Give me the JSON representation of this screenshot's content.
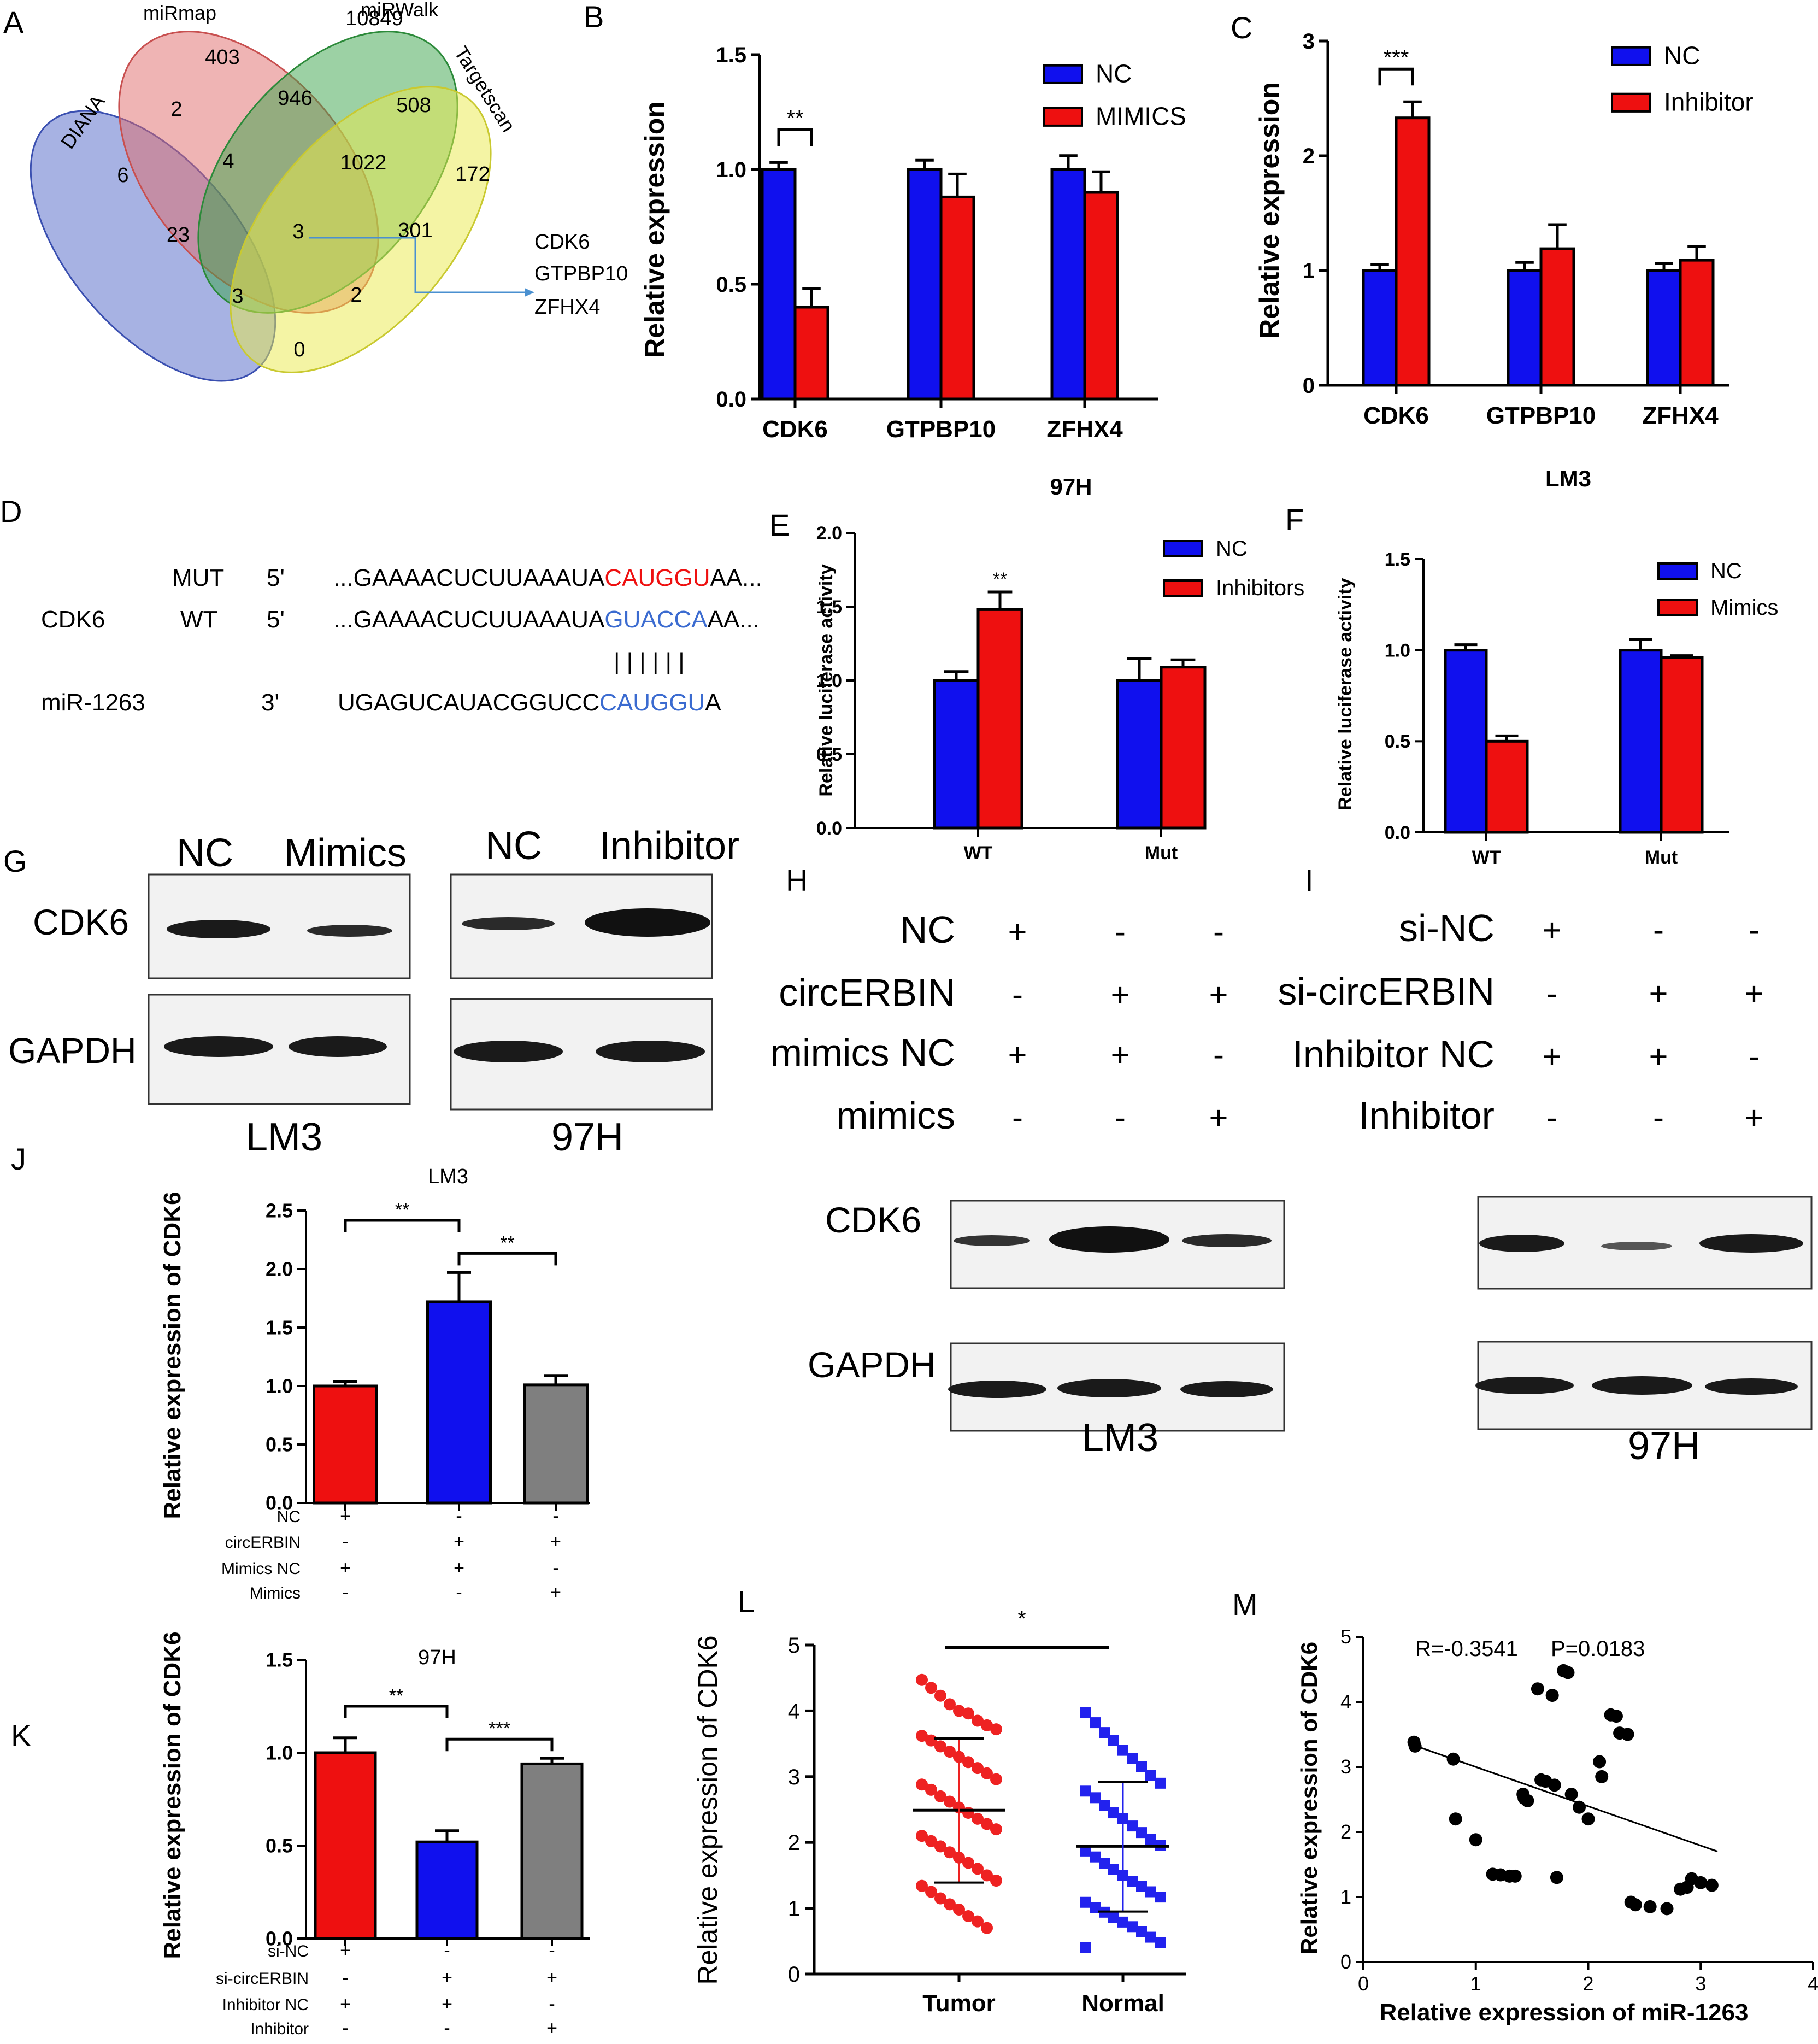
{
  "colors": {
    "nc": "#1010ee",
    "treat": "#ee1010",
    "gray": "#7f7f7f",
    "tumor": "#ee2222",
    "normal": "#2222ee",
    "venn_diana": "#4f66c8",
    "venn_mirmap": "#e06a6a",
    "venn_mirwalk": "#3aa34a",
    "venn_targetscan": "#e9e94a",
    "venn_extra": "#f0a040",
    "arrow": "#4a90d0"
  },
  "panels": {
    "A": "A",
    "B": "B",
    "C": "C",
    "D": "D",
    "E": "E",
    "F": "F",
    "G": "G",
    "H": "H",
    "I": "I",
    "J": "J",
    "K": "K",
    "L": "L",
    "M": "M"
  },
  "venn": {
    "sets": [
      "DIANA",
      "miRmap",
      "miRWalk",
      "Targetscan"
    ],
    "counts": [
      "403",
      "10849",
      "6",
      "2",
      "946",
      "508",
      "172",
      "4",
      "1022",
      "23",
      "3",
      "301",
      "3",
      "2",
      "0"
    ],
    "targets": [
      "CDK6",
      "GTPBP10",
      "ZFHX4"
    ]
  },
  "sequence": {
    "rows": [
      {
        "label": "",
        "type": "MUT",
        "end": "5'",
        "seq_pre": "...GAAAACUCUUAAAUA",
        "seq_mark": "CAUGGU",
        "seq_post": "AA..."
      },
      {
        "label": "CDK6",
        "type": "WT",
        "end": "5'",
        "seq_pre": "...GAAAACUCUUAAAUA",
        "seq_mark": "GUACCA",
        "seq_post": "AA..."
      },
      {
        "label": "miR-1263",
        "type": "",
        "end": "3'",
        "seq_pre": "UGAGUCAUACGGUCC",
        "seq_mark": "CAUGGU",
        "seq_post": "A"
      }
    ],
    "pairing": "| | | | | |"
  },
  "blots_G": {
    "LM3": {
      "lanes": [
        "NC",
        "Mimics"
      ],
      "cell": "LM3"
    },
    "97H": {
      "lanes": [
        "NC",
        "Inhibitor"
      ],
      "cell": "97H"
    },
    "proteins": [
      "CDK6",
      "GAPDH"
    ]
  },
  "blot_H": {
    "rows": [
      {
        "label": "NC",
        "signs": [
          "+",
          "-",
          "-"
        ]
      },
      {
        "label": "circERBIN",
        "signs": [
          "-",
          "+",
          "+"
        ]
      },
      {
        "label": "mimics NC",
        "signs": [
          "+",
          "+",
          "-"
        ]
      },
      {
        "label": "mimics",
        "signs": [
          "-",
          "-",
          "+"
        ]
      }
    ],
    "proteins": [
      "CDK6",
      "GAPDH"
    ],
    "cell": "LM3"
  },
  "blot_I": {
    "rows": [
      {
        "label": "si-NC",
        "signs": [
          "+",
          "-",
          "-"
        ]
      },
      {
        "label": "si-circERBIN",
        "signs": [
          "-",
          "+",
          "+"
        ]
      },
      {
        "label": "Inhibitor NC",
        "signs": [
          "+",
          "+",
          "-"
        ]
      },
      {
        "label": "Inhibitor",
        "signs": [
          "-",
          "-",
          "+"
        ]
      }
    ],
    "cell": "97H"
  },
  "chart_data": [
    {
      "id": "B",
      "type": "bar",
      "categories": [
        "CDK6",
        "GTPBP10",
        "ZFHX4"
      ],
      "series": [
        {
          "name": "NC",
          "values": [
            1.0,
            1.0,
            1.0
          ],
          "errors": [
            0.03,
            0.04,
            0.06
          ]
        },
        {
          "name": "MIMICS",
          "values": [
            0.4,
            0.88,
            0.9
          ],
          "errors": [
            0.08,
            0.1,
            0.09
          ]
        }
      ],
      "title": "97H",
      "ylabel": "Relative expression",
      "ylim": [
        0,
        1.5
      ],
      "yticks": [
        "0.0",
        "0.5",
        "1.0",
        "1.5"
      ],
      "significance": [
        {
          "label": "**",
          "category": "CDK6"
        }
      ]
    },
    {
      "id": "C",
      "type": "bar",
      "categories": [
        "CDK6",
        "GTPBP10",
        "ZFHX4"
      ],
      "series": [
        {
          "name": "NC",
          "values": [
            1.0,
            1.0,
            1.0
          ],
          "errors": [
            0.05,
            0.07,
            0.06
          ]
        },
        {
          "name": "Inhibitor",
          "values": [
            2.33,
            1.19,
            1.09
          ],
          "errors": [
            0.14,
            0.21,
            0.12
          ]
        }
      ],
      "title": "LM3",
      "ylabel": "Relative expression",
      "ylim": [
        0,
        3
      ],
      "yticks": [
        "0",
        "1",
        "2",
        "3"
      ],
      "significance": [
        {
          "label": "***",
          "category": "CDK6"
        }
      ]
    },
    {
      "id": "E",
      "type": "bar",
      "categories": [
        "WT",
        "Mut"
      ],
      "series": [
        {
          "name": "NC",
          "values": [
            1.0,
            1.0
          ],
          "errors": [
            0.06,
            0.15
          ]
        },
        {
          "name": "Inhibitors",
          "values": [
            1.48,
            1.09
          ],
          "errors": [
            0.12,
            0.05
          ]
        }
      ],
      "ylabel": "Relative luciferase activity",
      "ylim": [
        0,
        2.0
      ],
      "yticks": [
        "0.0",
        "0.5",
        "1.0",
        "1.5",
        "2.0"
      ],
      "significance": [
        {
          "label": "**",
          "category": "WT"
        }
      ]
    },
    {
      "id": "F",
      "type": "bar",
      "categories": [
        "WT",
        "Mut"
      ],
      "series": [
        {
          "name": "NC",
          "values": [
            1.0,
            1.0
          ],
          "errors": [
            0.03,
            0.06
          ]
        },
        {
          "name": "Mimics",
          "values": [
            0.5,
            0.96
          ],
          "errors": [
            0.03,
            0.01
          ]
        }
      ],
      "ylabel": "Relative luciferase activity",
      "ylim": [
        0,
        1.5
      ],
      "yticks": [
        "0.0",
        "0.5",
        "1.0",
        "1.5"
      ]
    },
    {
      "id": "J",
      "type": "bar",
      "title": "LM3",
      "categories": [
        "1",
        "2",
        "3"
      ],
      "values": [
        1.0,
        1.72,
        1.01
      ],
      "errors": [
        0.04,
        0.25,
        0.08
      ],
      "ylabel": "Relative expression of CDK6",
      "ylim": [
        0,
        2.5
      ],
      "yticks": [
        "0.0",
        "0.5",
        "1.0",
        "1.5",
        "2.0",
        "2.5"
      ],
      "conditions": [
        {
          "label": "NC",
          "signs": [
            "+",
            "-",
            "-"
          ]
        },
        {
          "label": "circERBIN",
          "signs": [
            "-",
            "+",
            "+"
          ]
        },
        {
          "label": "Mimics NC",
          "signs": [
            "+",
            "+",
            "-"
          ]
        },
        {
          "label": "Mimics",
          "signs": [
            "-",
            "-",
            "+"
          ]
        }
      ],
      "significance": [
        {
          "label": "**",
          "from": 0,
          "to": 1
        },
        {
          "label": "**",
          "from": 1,
          "to": 2
        }
      ]
    },
    {
      "id": "K",
      "type": "bar",
      "title": "97H",
      "categories": [
        "1",
        "2",
        "3"
      ],
      "values": [
        1.0,
        0.52,
        0.94
      ],
      "errors": [
        0.08,
        0.06,
        0.03
      ],
      "ylabel": "Relative expression of CDK6",
      "ylim": [
        0,
        1.5
      ],
      "yticks": [
        "0.0",
        "0.5",
        "1.0",
        "1.5"
      ],
      "conditions": [
        {
          "label": "si-NC",
          "signs": [
            "+",
            "-",
            "-"
          ]
        },
        {
          "label": "si-circERBIN",
          "signs": [
            "-",
            "+",
            "+"
          ]
        },
        {
          "label": "Inhibitor NC",
          "signs": [
            "+",
            "+",
            "-"
          ]
        },
        {
          "label": "Inhibitor",
          "signs": [
            "-",
            "-",
            "+"
          ]
        }
      ],
      "significance": [
        {
          "label": "**",
          "from": 0,
          "to": 1
        },
        {
          "label": "***",
          "from": 1,
          "to": 2
        }
      ]
    },
    {
      "id": "L",
      "type": "scatter",
      "categories": [
        "Tumor",
        "Normal"
      ],
      "ylabel": "Relative expression of CDK6",
      "ylim": [
        0,
        5
      ],
      "yticks": [
        "0",
        "1",
        "2",
        "3",
        "4",
        "5"
      ],
      "groups": [
        {
          "name": "Tumor",
          "mean": 2.49,
          "sd_low": 1.39,
          "sd_high": 3.58,
          "values": [
            4.47,
            4.35,
            4.23,
            4.1,
            4.0,
            3.96,
            3.85,
            3.78,
            3.72,
            3.62,
            3.55,
            3.46,
            3.38,
            3.3,
            3.22,
            3.13,
            3.05,
            2.96,
            2.88,
            2.8,
            2.7,
            2.62,
            2.53,
            2.45,
            2.36,
            2.28,
            2.2,
            2.1,
            2.02,
            1.94,
            1.85,
            1.77,
            1.69,
            1.6,
            1.5,
            1.42,
            1.34,
            1.25,
            1.15,
            1.06,
            0.98,
            0.88,
            0.8,
            0.7
          ]
        },
        {
          "name": "Normal",
          "mean": 1.94,
          "sd_low": 0.95,
          "sd_high": 2.92,
          "values": [
            3.97,
            3.82,
            3.67,
            3.55,
            3.4,
            3.28,
            3.15,
            3.02,
            2.9,
            2.78,
            2.68,
            2.56,
            2.45,
            2.36,
            2.25,
            2.15,
            2.05,
            1.96,
            1.87,
            1.78,
            1.68,
            1.59,
            1.5,
            1.41,
            1.33,
            1.25,
            1.17,
            1.09,
            1.01,
            0.94,
            0.86,
            0.79,
            0.72,
            0.64,
            0.56,
            0.48,
            0.4
          ]
        }
      ],
      "significance": [
        {
          "label": "*",
          "from": 0,
          "to": 1
        }
      ]
    },
    {
      "id": "M",
      "type": "scatter",
      "xlabel": "Relative expression of miR-1263",
      "ylabel": "Relative expression of CDK6",
      "xlim": [
        0,
        4
      ],
      "ylim": [
        0,
        5
      ],
      "xticks": [
        "0",
        "1",
        "2",
        "3",
        "4"
      ],
      "yticks": [
        "0",
        "1",
        "2",
        "3",
        "4",
        "5"
      ],
      "annotation_r": "R=-0.3541",
      "annotation_p": "P=0.0183",
      "points": [
        [
          0.45,
          3.38
        ],
        [
          0.46,
          3.32
        ],
        [
          0.8,
          3.12
        ],
        [
          0.82,
          2.2
        ],
        [
          1.0,
          1.88
        ],
        [
          1.15,
          1.35
        ],
        [
          1.22,
          1.34
        ],
        [
          1.3,
          1.32
        ],
        [
          1.35,
          1.32
        ],
        [
          1.42,
          2.58
        ],
        [
          1.43,
          2.52
        ],
        [
          1.46,
          2.48
        ],
        [
          1.55,
          4.2
        ],
        [
          1.58,
          2.8
        ],
        [
          1.62,
          2.78
        ],
        [
          1.68,
          4.1
        ],
        [
          1.7,
          2.72
        ],
        [
          1.72,
          1.3
        ],
        [
          1.78,
          4.48
        ],
        [
          1.82,
          4.45
        ],
        [
          1.85,
          2.58
        ],
        [
          1.92,
          2.38
        ],
        [
          2.0,
          2.2
        ],
        [
          2.1,
          3.08
        ],
        [
          2.12,
          2.85
        ],
        [
          2.2,
          3.8
        ],
        [
          2.25,
          3.78
        ],
        [
          2.28,
          3.52
        ],
        [
          2.35,
          3.5
        ],
        [
          2.38,
          0.92
        ],
        [
          2.42,
          0.88
        ],
        [
          2.55,
          0.85
        ],
        [
          2.7,
          0.82
        ],
        [
          2.82,
          1.12
        ],
        [
          2.88,
          1.15
        ],
        [
          2.92,
          1.28
        ],
        [
          3.0,
          1.22
        ],
        [
          3.1,
          1.18
        ]
      ],
      "trendline": [
        [
          0.42,
          3.35
        ],
        [
          3.15,
          1.7
        ]
      ]
    }
  ]
}
